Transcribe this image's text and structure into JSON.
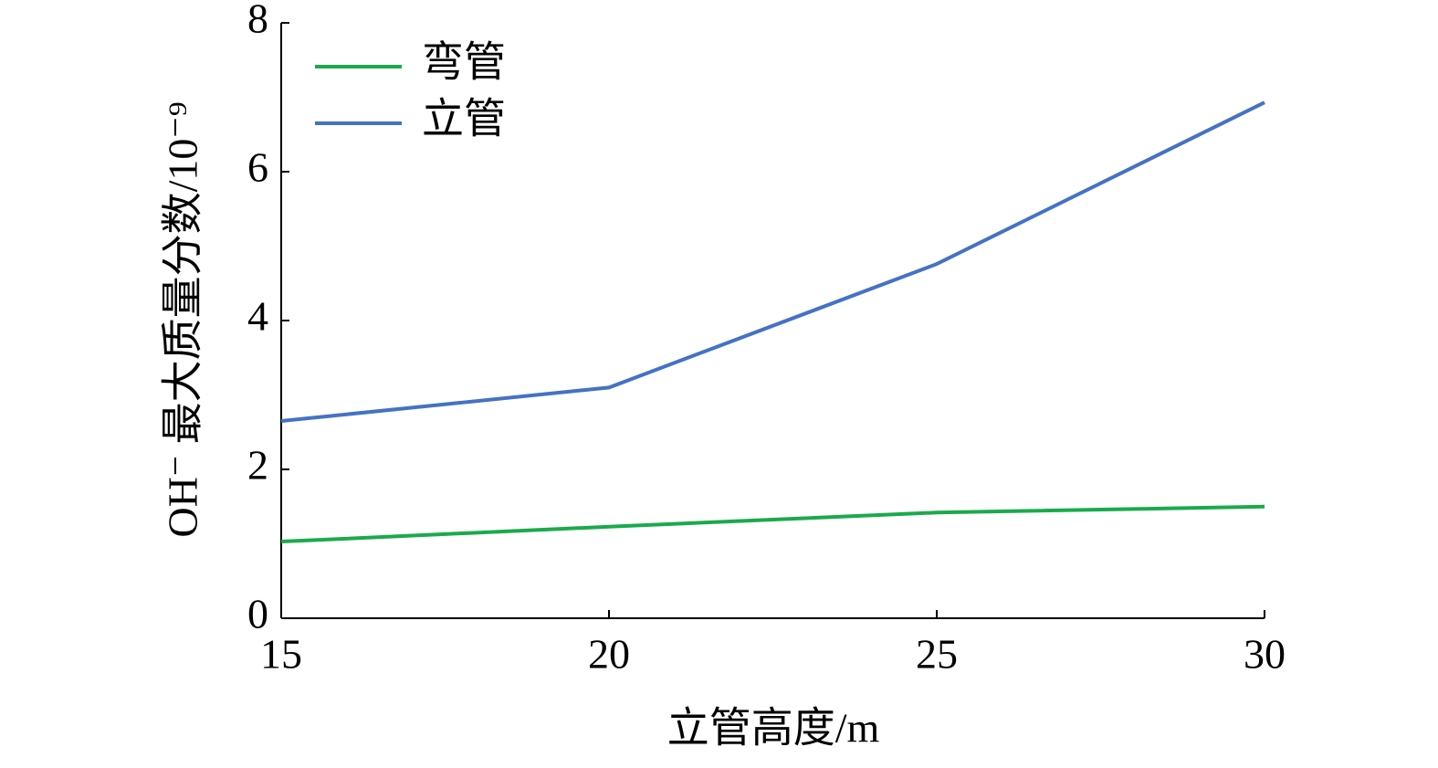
{
  "chart_data": {
    "type": "line",
    "x_label": "立管高度/m",
    "y_label": "OH⁻ 最大质量分数/10⁻⁹",
    "x": [
      15,
      20,
      25,
      30
    ],
    "series": [
      {
        "name": "弯管",
        "color": "#1aaa4c",
        "values": [
          1.03,
          1.23,
          1.42,
          1.5
        ]
      },
      {
        "name": "立管",
        "color": "#4472c4",
        "values": [
          2.65,
          3.1,
          4.76,
          6.93
        ]
      }
    ],
    "xlim": [
      15,
      30
    ],
    "xticks": [
      15,
      20,
      25,
      30
    ],
    "ylim": [
      0,
      8
    ],
    "yticks": [
      0,
      2,
      4,
      6,
      8
    ],
    "legend": "upper-left"
  }
}
